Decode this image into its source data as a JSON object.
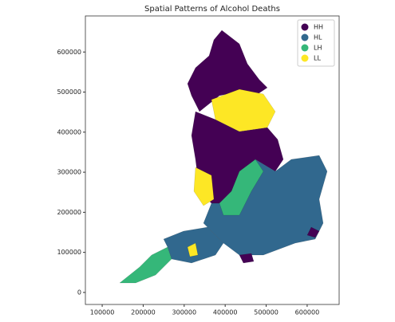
{
  "chart_data": {
    "type": "map",
    "title": "Spatial Patterns of Alcohol Deaths",
    "series": [
      {
        "name": "HH",
        "color": "#440154"
      },
      {
        "name": "HL",
        "color": "#31688e"
      },
      {
        "name": "LH",
        "color": "#35b779"
      },
      {
        "name": "LL",
        "color": "#fde725"
      }
    ],
    "xlim": [
      59000,
      678000
    ],
    "ylim": [
      -30000,
      690000
    ],
    "xticks": [
      100000,
      200000,
      300000,
      400000,
      500000,
      600000
    ],
    "yticks": [
      0,
      100000,
      200000,
      300000,
      400000,
      500000,
      600000
    ],
    "legend": "upper right"
  }
}
